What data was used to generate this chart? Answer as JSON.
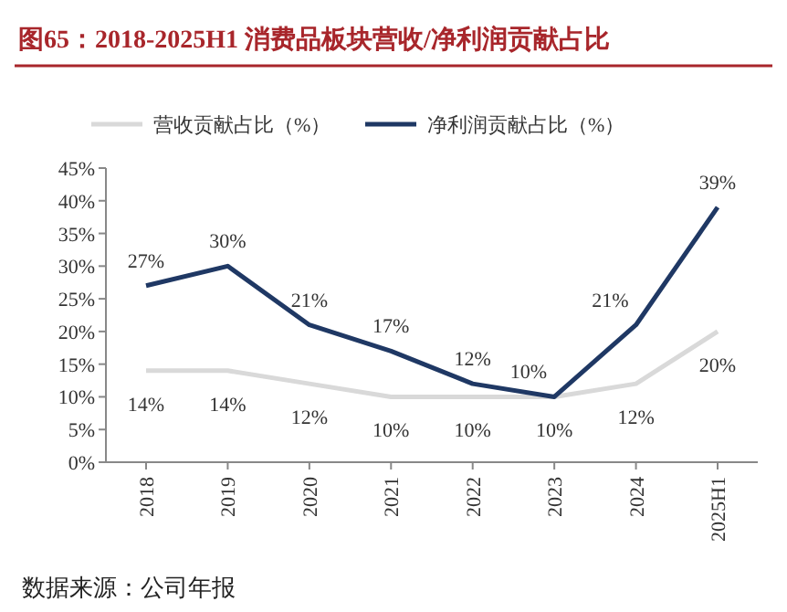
{
  "chart_data": {
    "type": "line",
    "title": "图65：2018-2025H1 消费品板块营收/净利润贡献占比",
    "categories": [
      "2018",
      "2019",
      "2020",
      "2021",
      "2022",
      "2023",
      "2024",
      "2025H1"
    ],
    "series": [
      {
        "name": "营收贡献占比（%）",
        "color": "#d9d9d9",
        "values": [
          14,
          14,
          12,
          10,
          10,
          10,
          12,
          20
        ],
        "value_labels": [
          "14%",
          "14%",
          "12%",
          "10%",
          "10%",
          "10%",
          "12%",
          "20%"
        ]
      },
      {
        "name": "净利润贡献占比（%）",
        "color": "#1f3864",
        "values": [
          27,
          30,
          21,
          17,
          12,
          10,
          21,
          39
        ],
        "value_labels": [
          "27%",
          "30%",
          "21%",
          "17%",
          "12%",
          "10%",
          "21%",
          "39%"
        ]
      }
    ],
    "ylim": [
      0,
      45
    ],
    "yticks": [
      {
        "value": 0,
        "label": "0%"
      },
      {
        "value": 5,
        "label": "5%"
      },
      {
        "value": 10,
        "label": "10%"
      },
      {
        "value": 15,
        "label": "15%"
      },
      {
        "value": 20,
        "label": "20%"
      },
      {
        "value": 25,
        "label": "25%"
      },
      {
        "value": 30,
        "label": "30%"
      },
      {
        "value": 35,
        "label": "35%"
      },
      {
        "value": 40,
        "label": "40%"
      },
      {
        "value": 45,
        "label": "45%"
      }
    ],
    "grid": false,
    "legend": "top",
    "marker": "none",
    "line_style": "solid",
    "annotations": [
      "数据来源：公司年报"
    ]
  }
}
